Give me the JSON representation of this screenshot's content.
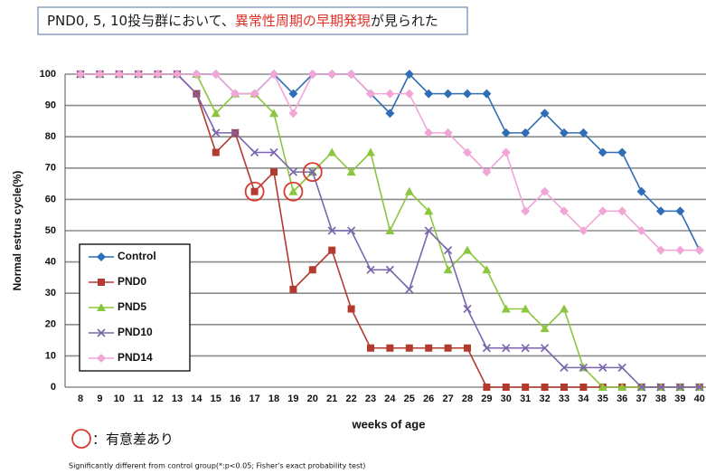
{
  "chart_data": {
    "type": "line",
    "title": [
      "PND0, 5, 10投与群において、",
      "異常性周期の早期発現",
      "が見られた"
    ],
    "title_colors": [
      "#1a1a1a",
      "#e0302a",
      "#1a1a1a"
    ],
    "y_label": "Normal estrus cycle(%)",
    "x_label": "weeks of age",
    "significance_note": "：有意差あり",
    "footnote": "Significantly different from control group(*:p<0.05; Fisher's exact probability test)",
    "categories": [
      "8",
      "9",
      "10",
      "11",
      "12",
      "13",
      "14",
      "15",
      "16",
      "17",
      "18",
      "19",
      "20",
      "21",
      "22",
      "23",
      "24",
      "25",
      "26",
      "27",
      "28",
      "29",
      "30",
      "31",
      "32",
      "33",
      "34",
      "35",
      "36",
      "37",
      "38",
      "39",
      "40"
    ],
    "ylim": [
      0,
      100
    ],
    "yticks": [
      0,
      10,
      20,
      30,
      40,
      50,
      60,
      70,
      80,
      90,
      100
    ],
    "grid": true,
    "legend": "lower-left",
    "series": [
      {
        "name": "Control",
        "color": "#2f6db5",
        "marker": "diamond",
        "values": [
          100,
          100,
          100,
          100,
          100,
          100,
          100,
          100,
          93.75,
          93.75,
          100,
          93.75,
          100,
          100,
          100,
          93.75,
          87.5,
          100,
          93.75,
          93.75,
          93.75,
          93.75,
          81.25,
          81.25,
          87.5,
          81.25,
          81.25,
          75,
          75,
          62.5,
          56.25,
          56.25,
          43.75
        ]
      },
      {
        "name": "PND0",
        "color": "#b23a2e",
        "marker": "square",
        "values": [
          100,
          100,
          100,
          100,
          100,
          100,
          93.75,
          75,
          81.25,
          62.5,
          68.75,
          31.25,
          37.5,
          43.75,
          25,
          12.5,
          12.5,
          12.5,
          12.5,
          12.5,
          12.5,
          0,
          0,
          0,
          0,
          0,
          0,
          0,
          0,
          0,
          0,
          0,
          0
        ]
      },
      {
        "name": "PND5",
        "color": "#8cc63f",
        "marker": "triangle",
        "values": [
          100,
          100,
          100,
          100,
          100,
          100,
          100,
          87.5,
          93.75,
          93.75,
          87.5,
          62.5,
          68.75,
          75,
          68.75,
          75,
          50,
          62.5,
          56.25,
          37.5,
          43.75,
          37.5,
          25,
          25,
          18.75,
          25,
          6.25,
          0,
          0,
          0,
          0,
          0,
          0
        ]
      },
      {
        "name": "PND10",
        "color": "#7a66ae",
        "marker": "x",
        "values": [
          100,
          100,
          100,
          100,
          100,
          100,
          93.75,
          81.25,
          81.25,
          75,
          75,
          68.75,
          68.75,
          50,
          50,
          37.5,
          37.5,
          31.25,
          50,
          43.75,
          25,
          12.5,
          12.5,
          12.5,
          12.5,
          6.25,
          6.25,
          6.25,
          6.25,
          0,
          0,
          0,
          0
        ]
      },
      {
        "name": "PND14",
        "color": "#f2a6d8",
        "marker": "diamond",
        "values": [
          100,
          100,
          100,
          100,
          100,
          100,
          100,
          100,
          93.75,
          93.75,
          100,
          87.5,
          100,
          100,
          100,
          93.75,
          93.75,
          93.75,
          81.25,
          81.25,
          75,
          68.75,
          75,
          56.25,
          62.5,
          56.25,
          50,
          56.25,
          56.25,
          50,
          43.75,
          43.75,
          43.75
        ]
      }
    ]
  }
}
